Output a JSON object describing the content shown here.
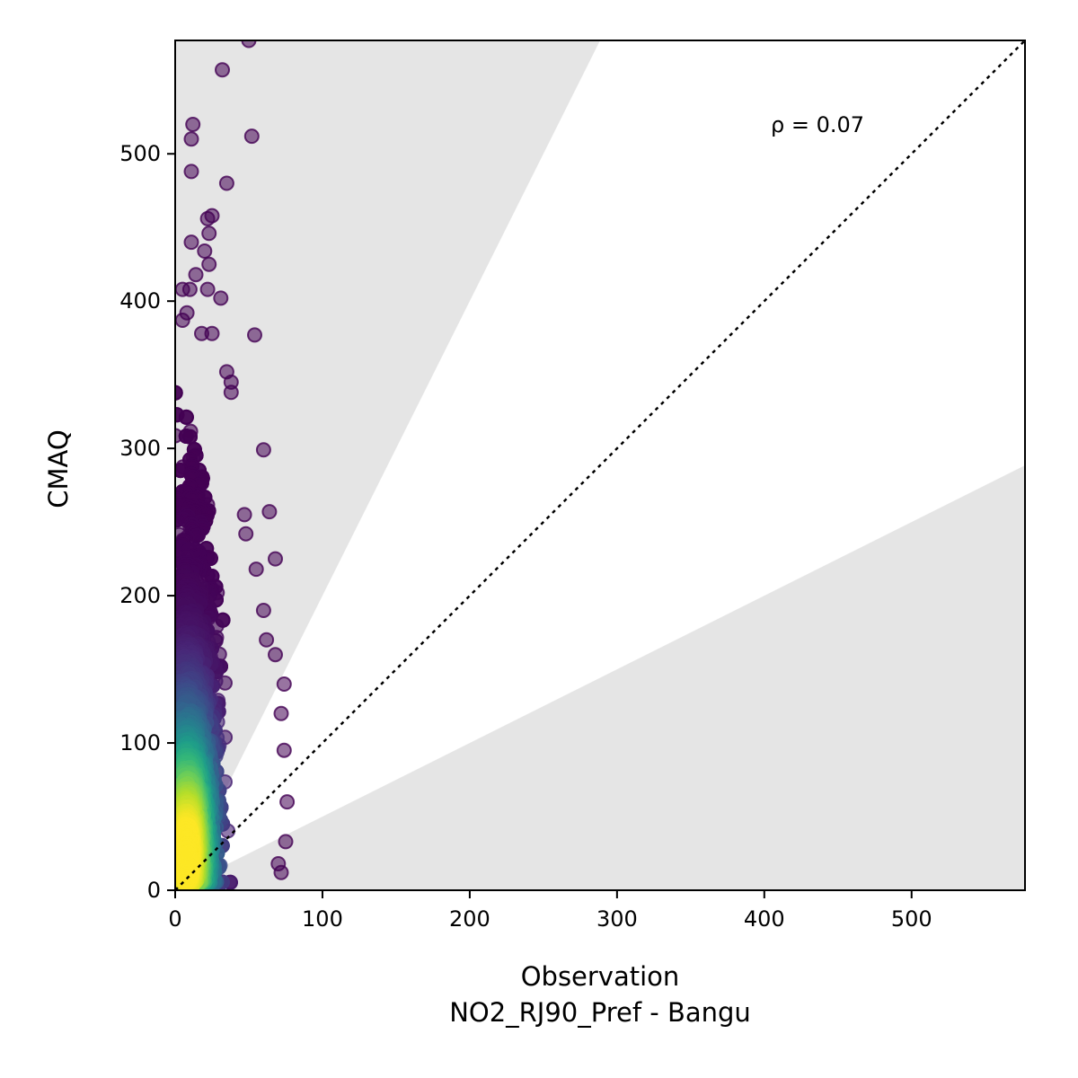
{
  "chart_data": {
    "type": "scatter",
    "title": "",
    "xlabel": "Observation",
    "xlabel_sub": "NO2_RJ90_Pref - Bangu",
    "ylabel": "CMAQ",
    "xlim": [
      0,
      577
    ],
    "ylim": [
      0,
      577
    ],
    "x_ticks": [
      0,
      100,
      200,
      300,
      400,
      500
    ],
    "y_ticks": [
      0,
      100,
      200,
      300,
      400,
      500
    ],
    "x_tick_labels": [
      "0",
      "100",
      "200",
      "300",
      "400",
      "500"
    ],
    "y_tick_labels": [
      "0",
      "100",
      "200",
      "300",
      "400",
      "500"
    ],
    "grid": false,
    "legend": "none",
    "annotation": "ρ = 0.07",
    "reference_line": {
      "style": "dotted",
      "slope": 1,
      "color": "#000000"
    },
    "shaded_regions": [
      {
        "description": "above factor-of-2 line",
        "slope_from": 2,
        "color": "#e5e5e5"
      },
      {
        "description": "below factor-of-0.5 line",
        "slope_to": 0.5,
        "color": "#e5e5e5"
      }
    ],
    "colormap": "viridis (point density)",
    "colors": {
      "low_density": "#440154",
      "mid_density": "#31688e",
      "high_density": "#fde725"
    },
    "outliers": [
      [
        50,
        577
      ],
      [
        32,
        557
      ],
      [
        12,
        520
      ],
      [
        11,
        510
      ],
      [
        52,
        512
      ],
      [
        11,
        488
      ],
      [
        35,
        480
      ],
      [
        25,
        458
      ],
      [
        22,
        456
      ],
      [
        23,
        446
      ],
      [
        11,
        440
      ],
      [
        20,
        434
      ],
      [
        23,
        425
      ],
      [
        14,
        418
      ],
      [
        10,
        408
      ],
      [
        22,
        408
      ],
      [
        5,
        408
      ],
      [
        31,
        402
      ],
      [
        8,
        392
      ],
      [
        5,
        387
      ],
      [
        54,
        377
      ],
      [
        25,
        378
      ],
      [
        18,
        378
      ],
      [
        35,
        352
      ],
      [
        38,
        345
      ],
      [
        38,
        338
      ],
      [
        60,
        299
      ],
      [
        47,
        255
      ],
      [
        64,
        257
      ],
      [
        48,
        242
      ],
      [
        68,
        225
      ],
      [
        55,
        218
      ],
      [
        60,
        190
      ],
      [
        62,
        170
      ],
      [
        68,
        160
      ],
      [
        74,
        140
      ],
      [
        72,
        120
      ],
      [
        74,
        95
      ],
      [
        76,
        60
      ],
      [
        75,
        33
      ],
      [
        72,
        12
      ],
      [
        70,
        18
      ]
    ],
    "bulk_distribution": {
      "x_center": 12,
      "x_spread": 14,
      "x_max": 75,
      "y_median": 120,
      "y_max_core": 350,
      "point_count": 5200
    }
  }
}
